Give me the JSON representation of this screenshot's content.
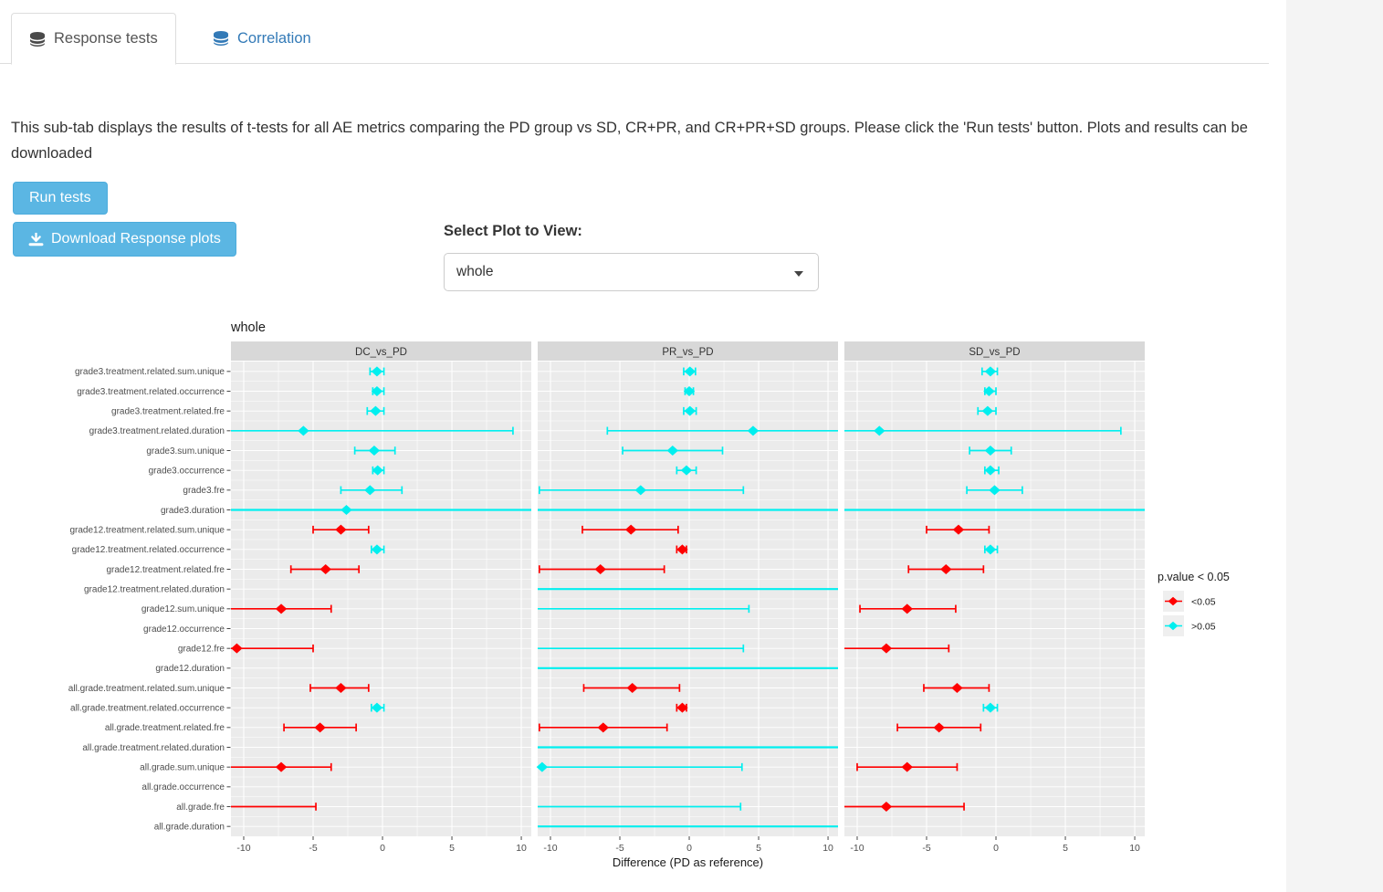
{
  "tabs": [
    {
      "label": "Response tests",
      "active": true
    },
    {
      "label": "Correlation",
      "active": false
    }
  ],
  "description": {
    "text": "This sub-tab displays the results of t-tests for all AE metrics comparing the PD group vs SD, CR+PR, and CR+PR+SD groups. Please click the 'Run tests' button. Plots and results can be downloaded"
  },
  "buttons": {
    "run": "Run tests",
    "download": "Download Response plots"
  },
  "plot_selector": {
    "label": "Select Plot to View:",
    "value": "whole"
  },
  "chart_data": {
    "type": "forest",
    "title": "whole",
    "facets": [
      "DC_vs_PD",
      "PR_vs_PD",
      "SD_vs_PD"
    ],
    "xlabel": "Difference (PD as reference)",
    "xticks": [
      -10,
      -5,
      0,
      5,
      10
    ],
    "xlim": [
      -10.92,
      10.72
    ],
    "grid": true,
    "legend": {
      "title": "p.value < 0.05",
      "position": "right",
      "entries": [
        {
          "label": "<0.05",
          "color": "#FF0000"
        },
        {
          "label": ">0.05",
          "color": "#00EFEF"
        }
      ]
    },
    "colors": {
      "sig": "#FF0000",
      "nonsig": "#00EFEF",
      "panel_bg": "#EBEBEB",
      "strip_bg": "#D8D8D8",
      "grid": "#FFFFFF"
    },
    "categories": [
      "grade3.treatment.related.sum.unique",
      "grade3.treatment.related.occurrence",
      "grade3.treatment.related.fre",
      "grade3.treatment.related.duration",
      "grade3.sum.unique",
      "grade3.occurrence",
      "grade3.fre",
      "grade3.duration",
      "grade12.treatment.related.sum.unique",
      "grade12.treatment.related.occurrence",
      "grade12.treatment.related.fre",
      "grade12.treatment.related.duration",
      "grade12.sum.unique",
      "grade12.occurrence",
      "grade12.fre",
      "grade12.duration",
      "all.grade.treatment.related.sum.unique",
      "all.grade.treatment.related.occurrence",
      "all.grade.treatment.related.fre",
      "all.grade.treatment.related.duration",
      "all.grade.sum.unique",
      "all.grade.occurrence",
      "all.grade.fre",
      "all.grade.duration"
    ],
    "series": [
      {
        "name": "DC_vs_PD",
        "points": [
          {
            "est": -0.4,
            "lo": -0.9,
            "hi": 0.1,
            "p": ">0.05"
          },
          {
            "est": -0.4,
            "lo": -0.7,
            "hi": 0.1,
            "p": ">0.05"
          },
          {
            "est": -0.5,
            "lo": -1.1,
            "hi": 0.1,
            "p": ">0.05"
          },
          {
            "est": -5.7,
            "lo": -12,
            "hi": 9.4,
            "p": ">0.05"
          },
          {
            "est": -0.6,
            "lo": -2.0,
            "hi": 0.9,
            "p": ">0.05"
          },
          {
            "est": -0.35,
            "lo": -0.7,
            "hi": 0.1,
            "p": ">0.05"
          },
          {
            "est": -0.9,
            "lo": -3.0,
            "hi": 1.4,
            "p": ">0.05"
          },
          {
            "est": -2.6,
            "lo": -12,
            "hi": 12,
            "p": ">0.05"
          },
          {
            "est": -3.0,
            "lo": -5.0,
            "hi": -1.0,
            "p": "<0.05"
          },
          {
            "est": -0.4,
            "lo": -0.8,
            "hi": 0.1,
            "p": ">0.05"
          },
          {
            "est": -4.1,
            "lo": -6.6,
            "hi": -1.7,
            "p": "<0.05"
          },
          null,
          {
            "est": -7.3,
            "lo": -12,
            "hi": -3.7,
            "p": "<0.05"
          },
          null,
          {
            "est": -10.5,
            "lo": -12,
            "hi": -5.0,
            "p": "<0.05"
          },
          null,
          {
            "est": -3.0,
            "lo": -5.2,
            "hi": -1.0,
            "p": "<0.05"
          },
          {
            "est": -0.4,
            "lo": -0.8,
            "hi": 0.1,
            "p": ">0.05"
          },
          {
            "est": -4.5,
            "lo": -7.1,
            "hi": -1.9,
            "p": "<0.05"
          },
          null,
          {
            "est": -7.3,
            "lo": -12,
            "hi": -3.7,
            "p": "<0.05"
          },
          null,
          {
            "est": null,
            "lo": -12,
            "hi": -4.8,
            "p": "<0.05"
          },
          null
        ]
      },
      {
        "name": "PR_vs_PD",
        "points": [
          {
            "est": 0.05,
            "lo": -0.4,
            "hi": 0.45,
            "p": ">0.05"
          },
          {
            "est": 0.0,
            "lo": -0.3,
            "hi": 0.3,
            "p": ">0.05"
          },
          {
            "est": 0.05,
            "lo": -0.4,
            "hi": 0.5,
            "p": ">0.05"
          },
          {
            "est": 4.6,
            "lo": -5.9,
            "hi": 12,
            "p": ">0.05"
          },
          {
            "est": -1.2,
            "lo": -4.8,
            "hi": 2.4,
            "p": ">0.05"
          },
          {
            "est": -0.2,
            "lo": -0.9,
            "hi": 0.5,
            "p": ">0.05"
          },
          {
            "est": -3.5,
            "lo": -10.8,
            "hi": 3.9,
            "p": ">0.05"
          },
          {
            "est": null,
            "lo": -12,
            "hi": 12,
            "p": ">0.05"
          },
          {
            "est": -4.2,
            "lo": -7.7,
            "hi": -0.8,
            "p": "<0.05"
          },
          {
            "est": -0.5,
            "lo": -0.9,
            "hi": -0.2,
            "p": "<0.05"
          },
          {
            "est": -6.4,
            "lo": -10.8,
            "hi": -1.8,
            "p": "<0.05"
          },
          {
            "est": null,
            "lo": -12,
            "hi": 12,
            "p": ">0.05"
          },
          {
            "est": null,
            "lo": -12,
            "hi": 4.3,
            "p": ">0.05"
          },
          null,
          {
            "est": null,
            "lo": -12,
            "hi": 3.9,
            "p": ">0.05"
          },
          {
            "est": null,
            "lo": -12,
            "hi": 12,
            "p": ">0.05"
          },
          {
            "est": -4.1,
            "lo": -7.6,
            "hi": -0.7,
            "p": "<0.05"
          },
          {
            "est": -0.5,
            "lo": -0.9,
            "hi": -0.2,
            "p": "<0.05"
          },
          {
            "est": -6.2,
            "lo": -10.8,
            "hi": -1.6,
            "p": "<0.05"
          },
          {
            "est": null,
            "lo": -12,
            "hi": 12,
            "p": ">0.05"
          },
          {
            "est": -10.6,
            "lo": -12,
            "hi": 3.8,
            "p": ">0.05"
          },
          null,
          {
            "est": null,
            "lo": -12,
            "hi": 3.7,
            "p": ">0.05"
          },
          {
            "est": null,
            "lo": -12,
            "hi": 12,
            "p": ">0.05"
          }
        ]
      },
      {
        "name": "SD_vs_PD",
        "points": [
          {
            "est": -0.4,
            "lo": -1.0,
            "hi": 0.1,
            "p": ">0.05"
          },
          {
            "est": -0.5,
            "lo": -0.8,
            "hi": 0.0,
            "p": ">0.05"
          },
          {
            "est": -0.6,
            "lo": -1.3,
            "hi": 0.0,
            "p": ">0.05"
          },
          {
            "est": -8.4,
            "lo": -12,
            "hi": 9.0,
            "p": ">0.05"
          },
          {
            "est": -0.4,
            "lo": -1.9,
            "hi": 1.1,
            "p": ">0.05"
          },
          {
            "est": -0.4,
            "lo": -0.8,
            "hi": 0.2,
            "p": ">0.05"
          },
          {
            "est": -0.1,
            "lo": -2.1,
            "hi": 1.9,
            "p": ">0.05"
          },
          {
            "est": null,
            "lo": -12,
            "hi": 12,
            "p": ">0.05"
          },
          {
            "est": -2.7,
            "lo": -5.0,
            "hi": -0.5,
            "p": "<0.05"
          },
          {
            "est": -0.4,
            "lo": -0.8,
            "hi": 0.1,
            "p": ">0.05"
          },
          {
            "est": -3.6,
            "lo": -6.3,
            "hi": -0.9,
            "p": "<0.05"
          },
          null,
          {
            "est": -6.4,
            "lo": -9.8,
            "hi": -2.9,
            "p": "<0.05"
          },
          null,
          {
            "est": -7.9,
            "lo": -12,
            "hi": -3.4,
            "p": "<0.05"
          },
          null,
          {
            "est": -2.8,
            "lo": -5.2,
            "hi": -0.5,
            "p": "<0.05"
          },
          {
            "est": -0.4,
            "lo": -0.9,
            "hi": 0.1,
            "p": ">0.05"
          },
          {
            "est": -4.1,
            "lo": -7.1,
            "hi": -1.1,
            "p": "<0.05"
          },
          null,
          {
            "est": -6.4,
            "lo": -10.0,
            "hi": -2.8,
            "p": "<0.05"
          },
          null,
          {
            "est": -7.9,
            "lo": -12,
            "hi": -2.3,
            "p": "<0.05"
          },
          null
        ]
      }
    ]
  }
}
